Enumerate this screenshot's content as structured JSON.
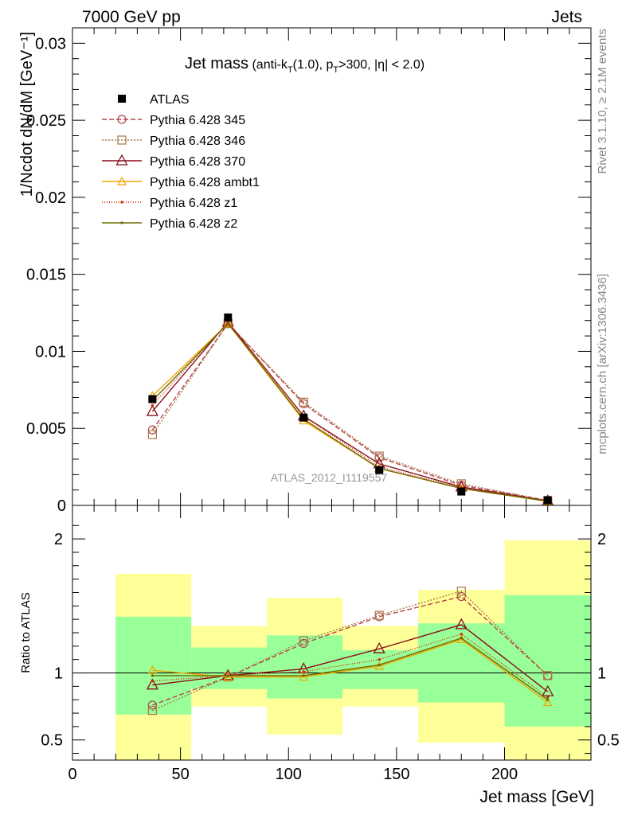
{
  "header": {
    "left": "7000 GeV pp",
    "right": "Jets"
  },
  "title": {
    "main": "Jet mass",
    "sub_prefix": " (anti-k",
    "sub_k_sub": "T",
    "sub_mid": "(1.0), p",
    "sub_p_sub": "T",
    "sub_suffix": ">300, |η| < 2.0)"
  },
  "side_labels": {
    "rivet": "Rivet 3.1.10, ≥ 2.1M events",
    "mcplots": "mcplots.cern.ch [arXiv:1306.3436]"
  },
  "watermark": "ATLAS_2012_I1119557",
  "colors": {
    "atlas": "#000000",
    "p345": "#b5434b",
    "p346": "#a8784a",
    "p370": "#8b0f1a",
    "ambt1": "#f0a500",
    "z1": "#cc1f00",
    "z2": "#6b6b00",
    "band_inner": "#99ff99",
    "band_outer": "#ffff99"
  },
  "chart_data": [
    {
      "type": "line",
      "panel": "main",
      "ylabel": "1/Ncdot dN/dM [GeV⁻¹]",
      "ylim": [
        0,
        0.031
      ],
      "yticks": [
        {
          "v": 0.005,
          "label": "0.005"
        },
        {
          "v": 0.01,
          "label": "0.01"
        },
        {
          "v": 0.015,
          "label": "0.015"
        },
        {
          "v": 0.02,
          "label": "0.02"
        },
        {
          "v": 0.025,
          "label": "0.025"
        },
        {
          "v": 0.03,
          "label": "0.03"
        },
        {
          "v": 0.0,
          "label": "0"
        }
      ],
      "xlim": [
        0,
        240
      ],
      "x": [
        37,
        72,
        107,
        142,
        180,
        220
      ],
      "legend_position": "top-left",
      "series": [
        {
          "name": "ATLAS",
          "key": "atlas",
          "marker": "square-filled",
          "dash": "none",
          "values": [
            0.0069,
            0.0122,
            0.0057,
            0.0023,
            0.0009,
            0.00033
          ]
        },
        {
          "name": "Pythia 6.428 345",
          "key": "p345",
          "marker": "circle-open",
          "dash": "6,3",
          "values": [
            0.0049,
            0.0118,
            0.0066,
            0.0031,
            0.0013,
            0.00032
          ]
        },
        {
          "name": "Pythia 6.428 346",
          "key": "p346",
          "marker": "square-open",
          "dash": "2,2",
          "values": [
            0.0046,
            0.0118,
            0.0067,
            0.0032,
            0.0014,
            0.00032
          ]
        },
        {
          "name": "Pythia 6.428 370",
          "key": "p370",
          "marker": "triangle-open",
          "dash": "none",
          "values": [
            0.0061,
            0.0119,
            0.0058,
            0.0027,
            0.0012,
            0.00029
          ]
        },
        {
          "name": "Pythia 6.428 ambt1",
          "key": "ambt1",
          "marker": "triangle-open-small",
          "dash": "none",
          "values": [
            0.0071,
            0.0118,
            0.0055,
            0.0024,
            0.0011,
            0.00026
          ]
        },
        {
          "name": "Pythia 6.428 z1",
          "key": "z1",
          "marker": "dot",
          "dash": "1,2",
          "values": [
            0.0065,
            0.0119,
            0.0058,
            0.0025,
            0.00115,
            0.00027
          ]
        },
        {
          "name": "Pythia 6.428 z2",
          "key": "z2",
          "marker": "dot",
          "dash": "none",
          "values": [
            0.0068,
            0.0118,
            0.0056,
            0.0024,
            0.0011,
            0.00027
          ]
        }
      ]
    },
    {
      "type": "line",
      "panel": "ratio",
      "xlabel": "Jet mass [GeV]",
      "ylabel": "Ratio to ATLAS",
      "ylim": [
        0.35,
        2.25
      ],
      "yticks": [
        {
          "v": 0.5,
          "label": "0.5"
        },
        {
          "v": 1,
          "label": "1"
        },
        {
          "v": 2,
          "label": "2"
        }
      ],
      "xlim": [
        0,
        240
      ],
      "xticks": [
        {
          "v": 0,
          "label": "0"
        },
        {
          "v": 50,
          "label": "50"
        },
        {
          "v": 100,
          "label": "100"
        },
        {
          "v": 150,
          "label": "150"
        },
        {
          "v": 200,
          "label": "200"
        }
      ],
      "bins": [
        {
          "x0": 20,
          "x1": 55,
          "inner": [
            0.69,
            1.42
          ],
          "outer": [
            0.35,
            1.74
          ]
        },
        {
          "x0": 55,
          "x1": 90,
          "inner": [
            0.88,
            1.19
          ],
          "outer": [
            0.75,
            1.35
          ]
        },
        {
          "x0": 90,
          "x1": 125,
          "inner": [
            0.81,
            1.28
          ],
          "outer": [
            0.54,
            1.56
          ]
        },
        {
          "x0": 125,
          "x1": 160,
          "inner": [
            0.88,
            1.17
          ],
          "outer": [
            0.75,
            1.35
          ]
        },
        {
          "x0": 160,
          "x1": 200,
          "inner": [
            0.78,
            1.37
          ],
          "outer": [
            0.48,
            1.62
          ]
        },
        {
          "x0": 200,
          "x1": 240,
          "inner": [
            0.6,
            1.58
          ],
          "outer": [
            0.35,
            1.99
          ]
        }
      ],
      "x": [
        37,
        72,
        107,
        142,
        180,
        220
      ],
      "series": [
        {
          "name": "Pythia 6.428 345",
          "key": "p345",
          "values": [
            0.76,
            0.97,
            1.22,
            1.42,
            1.57,
            0.98
          ]
        },
        {
          "name": "Pythia 6.428 346",
          "key": "p346",
          "values": [
            0.72,
            0.97,
            1.24,
            1.43,
            1.61,
            0.98
          ]
        },
        {
          "name": "Pythia 6.428 370",
          "key": "p370",
          "values": [
            0.91,
            0.98,
            1.03,
            1.18,
            1.36,
            0.86
          ]
        },
        {
          "name": "Pythia 6.428 ambt1",
          "key": "ambt1",
          "values": [
            1.02,
            0.97,
            0.97,
            1.05,
            1.25,
            0.78
          ]
        },
        {
          "name": "Pythia 6.428 z1",
          "key": "z1",
          "values": [
            0.94,
            0.98,
            1.01,
            1.1,
            1.29,
            0.82
          ]
        },
        {
          "name": "Pythia 6.428 z2",
          "key": "z2",
          "values": [
            0.98,
            0.98,
            0.98,
            1.06,
            1.26,
            0.8
          ]
        }
      ]
    }
  ]
}
